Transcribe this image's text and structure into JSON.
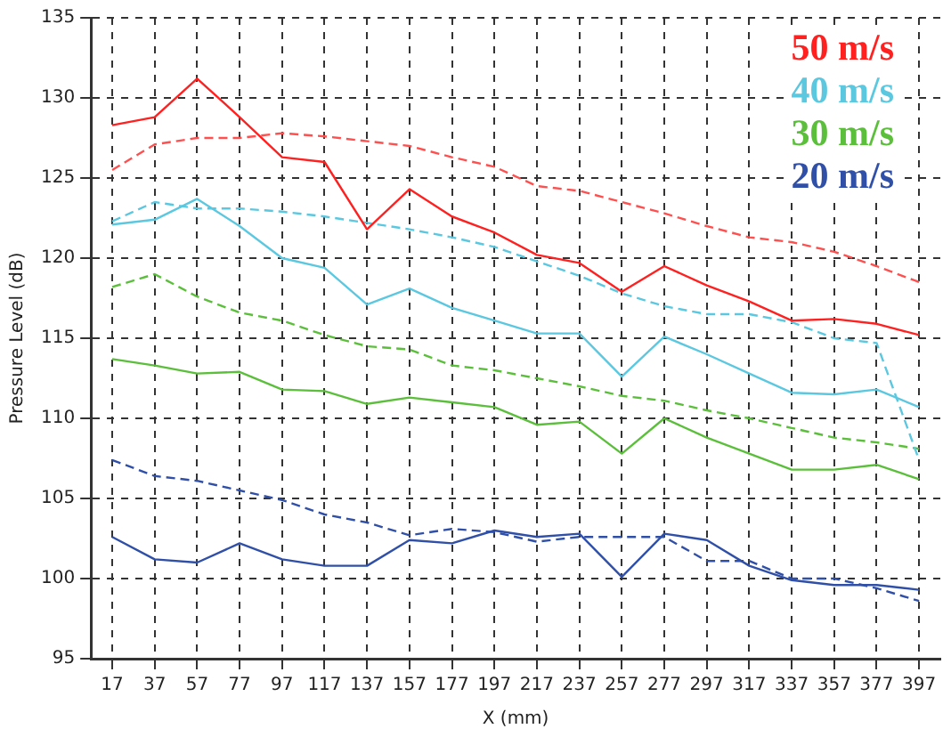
{
  "chart_data": {
    "type": "line",
    "xlabel": "X (mm)",
    "ylabel": "Pressure Level (dB)",
    "categories": [
      "17",
      "37",
      "57",
      "77",
      "97",
      "117",
      "137",
      "157",
      "177",
      "197",
      "217",
      "237",
      "257",
      "277",
      "297",
      "317",
      "337",
      "357",
      "377",
      "397"
    ],
    "ylim": [
      95,
      135
    ],
    "yticks": [
      95,
      100,
      105,
      110,
      115,
      120,
      125,
      130,
      135
    ],
    "grid": true,
    "legend": "top right",
    "marker": "none",
    "series": [
      {
        "name": "50 m/s",
        "color": "#ff2020",
        "line_style": "solid",
        "values": [
          128.3,
          128.8,
          131.2,
          128.8,
          126.3,
          126.0,
          121.8,
          124.3,
          122.6,
          121.6,
          120.2,
          119.7,
          117.9,
          119.5,
          118.3,
          117.3,
          116.1,
          116.2,
          115.9,
          115.2
        ]
      },
      {
        "color": "#ff5050",
        "line_style": "dashed",
        "values": [
          125.5,
          127.1,
          127.5,
          127.5,
          127.8,
          127.6,
          127.3,
          127.0,
          126.3,
          125.7,
          124.5,
          124.2,
          123.5,
          122.8,
          122.0,
          121.3,
          121.0,
          120.4,
          119.5,
          118.5
        ]
      },
      {
        "name": "40 m/s",
        "color": "#5bc8e0",
        "line_style": "solid",
        "values": [
          122.1,
          122.4,
          123.7,
          122.0,
          120.0,
          119.4,
          117.1,
          118.1,
          116.9,
          116.1,
          115.3,
          115.3,
          112.6,
          115.1,
          114.0,
          112.8,
          111.6,
          111.5,
          111.8,
          110.7
        ]
      },
      {
        "color": "#5bc8e0",
        "line_style": "dashed",
        "values": [
          122.3,
          123.5,
          123.1,
          123.1,
          122.9,
          122.6,
          122.2,
          121.8,
          121.3,
          120.7,
          119.8,
          118.9,
          117.8,
          117.0,
          116.5,
          116.5,
          116.0,
          115.0,
          114.7,
          107.4
        ]
      },
      {
        "name": "30 m/s",
        "color": "#5cbf3c",
        "line_style": "solid",
        "values": [
          113.7,
          113.3,
          112.8,
          112.9,
          111.8,
          111.7,
          110.9,
          111.3,
          111.0,
          110.7,
          109.6,
          109.8,
          107.8,
          110.0,
          108.8,
          107.8,
          106.8,
          106.8,
          107.1,
          106.2
        ]
      },
      {
        "color": "#5cbf3c",
        "line_style": "dashed",
        "values": [
          118.2,
          119.0,
          117.6,
          116.6,
          116.1,
          115.2,
          114.5,
          114.3,
          113.3,
          113.0,
          112.5,
          112.0,
          111.4,
          111.1,
          110.5,
          110.0,
          109.4,
          108.8,
          108.5,
          108.1
        ]
      },
      {
        "name": "20 m/s",
        "color": "#3050a8",
        "line_style": "solid",
        "values": [
          102.6,
          101.2,
          101.0,
          102.2,
          101.2,
          100.8,
          100.8,
          102.4,
          102.2,
          103.0,
          102.6,
          102.8,
          100.1,
          102.8,
          102.4,
          100.8,
          99.9,
          99.6,
          99.6,
          99.3
        ]
      },
      {
        "color": "#3050a8",
        "line_style": "dashed",
        "values": [
          107.4,
          106.4,
          106.1,
          105.5,
          104.9,
          104.0,
          103.5,
          102.7,
          103.1,
          102.9,
          102.3,
          102.6,
          102.6,
          102.6,
          101.1,
          101.1,
          100.0,
          100.0,
          99.4,
          98.6
        ]
      }
    ]
  }
}
